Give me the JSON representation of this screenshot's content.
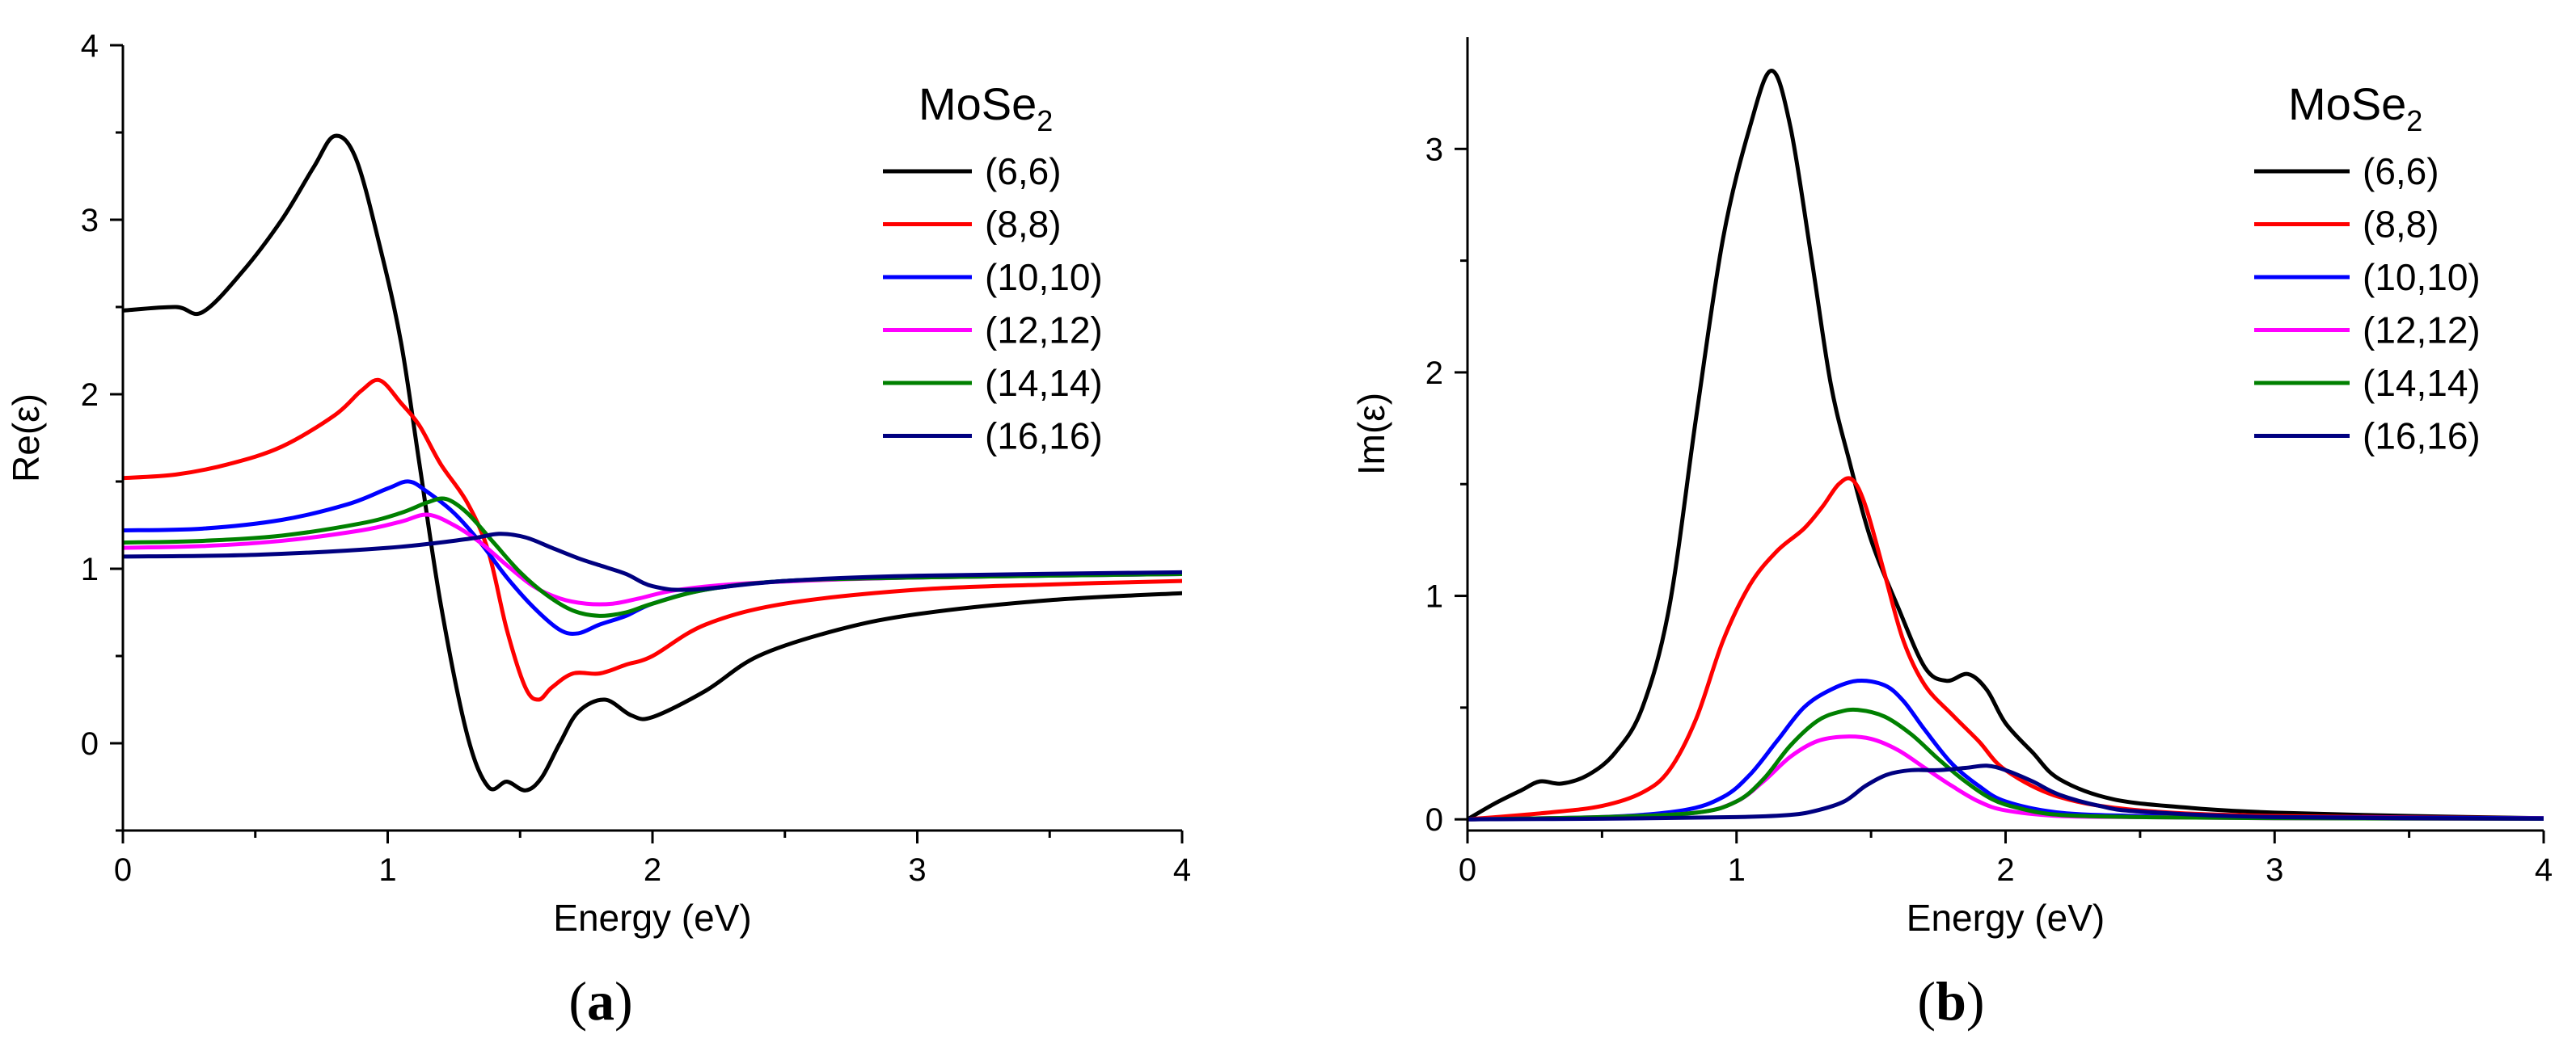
{
  "chart_data": [
    {
      "type": "line",
      "panel_label": "a",
      "xlabel": "Energy (eV)",
      "ylabel": "Re(ε)",
      "xlim": [
        0,
        4
      ],
      "ylim": [
        -0.5,
        4
      ],
      "xticks": [
        0,
        1,
        2,
        3,
        4
      ],
      "yticks": [
        0,
        1,
        2,
        3,
        4
      ],
      "grid": false,
      "legend": {
        "title": "MoSe",
        "title_sub": "2",
        "position": "top-right"
      },
      "series": [
        {
          "name": "(6,6)",
          "color": "#000000",
          "x": [
            0,
            0.2,
            0.3,
            0.45,
            0.6,
            0.72,
            0.8,
            0.88,
            0.97,
            1.05,
            1.12,
            1.2,
            1.3,
            1.38,
            1.45,
            1.52,
            1.58,
            1.65,
            1.72,
            1.82,
            1.92,
            2.0,
            2.2,
            2.4,
            2.7,
            3.0,
            3.5,
            4.0
          ],
          "y": [
            2.48,
            2.5,
            2.47,
            2.7,
            3.0,
            3.3,
            3.48,
            3.35,
            2.85,
            2.3,
            1.6,
            0.8,
            0.05,
            -0.25,
            -0.22,
            -0.27,
            -0.2,
            0.0,
            0.18,
            0.25,
            0.16,
            0.15,
            0.3,
            0.5,
            0.65,
            0.74,
            0.82,
            0.86
          ]
        },
        {
          "name": "(8,8)",
          "color": "#ff0000",
          "x": [
            0,
            0.2,
            0.4,
            0.6,
            0.8,
            0.9,
            0.97,
            1.05,
            1.12,
            1.2,
            1.3,
            1.38,
            1.45,
            1.52,
            1.57,
            1.62,
            1.7,
            1.8,
            1.9,
            2.0,
            2.2,
            2.5,
            3.0,
            3.5,
            4.0
          ],
          "y": [
            1.52,
            1.54,
            1.6,
            1.7,
            1.88,
            2.02,
            2.08,
            1.95,
            1.82,
            1.6,
            1.38,
            1.1,
            0.65,
            0.32,
            0.25,
            0.32,
            0.4,
            0.4,
            0.45,
            0.5,
            0.68,
            0.8,
            0.88,
            0.91,
            0.93
          ]
        },
        {
          "name": "(10,10)",
          "color": "#0000ff",
          "x": [
            0,
            0.3,
            0.6,
            0.85,
            1.0,
            1.08,
            1.15,
            1.25,
            1.35,
            1.45,
            1.55,
            1.65,
            1.72,
            1.8,
            1.9,
            2.0,
            2.2,
            2.5,
            3.0,
            4.0
          ],
          "y": [
            1.22,
            1.23,
            1.28,
            1.37,
            1.46,
            1.5,
            1.44,
            1.32,
            1.15,
            0.95,
            0.78,
            0.65,
            0.63,
            0.68,
            0.73,
            0.8,
            0.88,
            0.93,
            0.95,
            0.97
          ]
        },
        {
          "name": "(12,12)",
          "color": "#ff00ff",
          "x": [
            0,
            0.3,
            0.6,
            0.9,
            1.05,
            1.15,
            1.25,
            1.35,
            1.45,
            1.55,
            1.65,
            1.75,
            1.85,
            1.95,
            2.1,
            2.4,
            3.0,
            4.0
          ],
          "y": [
            1.12,
            1.13,
            1.16,
            1.22,
            1.27,
            1.31,
            1.25,
            1.15,
            1.02,
            0.9,
            0.83,
            0.8,
            0.8,
            0.83,
            0.88,
            0.92,
            0.95,
            0.97
          ]
        },
        {
          "name": "(14,14)",
          "color": "#008000",
          "x": [
            0,
            0.3,
            0.6,
            0.9,
            1.05,
            1.15,
            1.22,
            1.3,
            1.4,
            1.5,
            1.6,
            1.7,
            1.8,
            1.9,
            2.0,
            2.2,
            2.5,
            3.0,
            4.0
          ],
          "y": [
            1.15,
            1.16,
            1.19,
            1.26,
            1.32,
            1.38,
            1.4,
            1.32,
            1.15,
            0.98,
            0.85,
            0.76,
            0.73,
            0.75,
            0.8,
            0.88,
            0.93,
            0.95,
            0.97
          ]
        },
        {
          "name": "(16,16)",
          "color": "#000080",
          "x": [
            0,
            0.5,
            1.0,
            1.3,
            1.42,
            1.52,
            1.62,
            1.72,
            1.8,
            1.9,
            2.0,
            2.15,
            2.5,
            3.0,
            4.0
          ],
          "y": [
            1.07,
            1.08,
            1.12,
            1.17,
            1.2,
            1.18,
            1.12,
            1.06,
            1.02,
            0.97,
            0.9,
            0.88,
            0.93,
            0.96,
            0.98
          ]
        }
      ]
    },
    {
      "type": "line",
      "panel_label": "b",
      "xlabel": "Energy (eV)",
      "ylabel": "Im(ε)",
      "xlim": [
        0,
        4
      ],
      "ylim": [
        -0.05,
        3.5
      ],
      "xticks": [
        0,
        1,
        2,
        3,
        4
      ],
      "yticks": [
        0,
        1,
        2,
        3
      ],
      "grid": false,
      "legend": {
        "title": "MoSe",
        "title_sub": "2",
        "position": "top-right"
      },
      "series": [
        {
          "name": "(6,6)",
          "color": "#000000",
          "x": [
            0,
            0.1,
            0.2,
            0.27,
            0.35,
            0.45,
            0.55,
            0.65,
            0.75,
            0.85,
            0.95,
            1.05,
            1.13,
            1.2,
            1.28,
            1.35,
            1.42,
            1.5,
            1.6,
            1.7,
            1.78,
            1.86,
            1.93,
            2.0,
            2.1,
            2.2,
            2.4,
            2.7,
            3.0,
            3.5,
            4.0
          ],
          "y": [
            0.0,
            0.07,
            0.13,
            0.17,
            0.16,
            0.2,
            0.3,
            0.5,
            0.95,
            1.8,
            2.6,
            3.1,
            3.35,
            3.1,
            2.5,
            1.95,
            1.6,
            1.25,
            0.95,
            0.68,
            0.62,
            0.65,
            0.58,
            0.43,
            0.3,
            0.18,
            0.09,
            0.05,
            0.03,
            0.015,
            0.005
          ]
        },
        {
          "name": "(8,8)",
          "color": "#ff0000",
          "x": [
            0,
            0.3,
            0.5,
            0.65,
            0.75,
            0.85,
            0.95,
            1.05,
            1.15,
            1.25,
            1.32,
            1.38,
            1.43,
            1.48,
            1.55,
            1.62,
            1.7,
            1.8,
            1.9,
            2.0,
            2.2,
            2.5,
            3.0,
            4.0
          ],
          "y": [
            0.0,
            0.03,
            0.06,
            0.12,
            0.22,
            0.45,
            0.8,
            1.05,
            1.2,
            1.3,
            1.4,
            1.5,
            1.52,
            1.4,
            1.1,
            0.8,
            0.6,
            0.47,
            0.35,
            0.22,
            0.1,
            0.04,
            0.015,
            0.005
          ]
        },
        {
          "name": "(10,10)",
          "color": "#0000ff",
          "x": [
            0,
            0.5,
            0.8,
            0.95,
            1.05,
            1.15,
            1.25,
            1.35,
            1.45,
            1.55,
            1.62,
            1.7,
            1.8,
            1.9,
            2.0,
            2.2,
            2.5,
            3.0,
            4.0
          ],
          "y": [
            0.0,
            0.01,
            0.04,
            0.1,
            0.2,
            0.35,
            0.5,
            0.58,
            0.62,
            0.6,
            0.53,
            0.4,
            0.25,
            0.15,
            0.08,
            0.03,
            0.015,
            0.01,
            0.005
          ]
        },
        {
          "name": "(12,12)",
          "color": "#ff00ff",
          "x": [
            0,
            0.5,
            0.85,
            1.0,
            1.1,
            1.2,
            1.3,
            1.4,
            1.5,
            1.6,
            1.7,
            1.8,
            1.9,
            2.0,
            2.2,
            2.5,
            3.0,
            4.0
          ],
          "y": [
            0.0,
            0.01,
            0.03,
            0.08,
            0.17,
            0.28,
            0.35,
            0.37,
            0.36,
            0.31,
            0.23,
            0.15,
            0.08,
            0.04,
            0.015,
            0.01,
            0.005,
            0.003
          ]
        },
        {
          "name": "(14,14)",
          "color": "#008000",
          "x": [
            0,
            0.5,
            0.85,
            1.0,
            1.1,
            1.2,
            1.3,
            1.38,
            1.45,
            1.55,
            1.65,
            1.75,
            1.85,
            1.95,
            2.05,
            2.2,
            2.5,
            3.0,
            4.0
          ],
          "y": [
            0.0,
            0.01,
            0.03,
            0.08,
            0.18,
            0.33,
            0.44,
            0.48,
            0.49,
            0.46,
            0.38,
            0.27,
            0.17,
            0.09,
            0.05,
            0.02,
            0.01,
            0.005,
            0.003
          ]
        },
        {
          "name": "(16,16)",
          "color": "#000080",
          "x": [
            0,
            0.5,
            1.0,
            1.2,
            1.3,
            1.4,
            1.48,
            1.56,
            1.65,
            1.75,
            1.85,
            1.93,
            2.0,
            2.1,
            2.2,
            2.35,
            2.5,
            3.0,
            4.0
          ],
          "y": [
            0.0,
            0.003,
            0.01,
            0.02,
            0.04,
            0.08,
            0.15,
            0.2,
            0.22,
            0.22,
            0.23,
            0.24,
            0.22,
            0.17,
            0.11,
            0.06,
            0.035,
            0.01,
            0.003
          ]
        }
      ]
    }
  ]
}
